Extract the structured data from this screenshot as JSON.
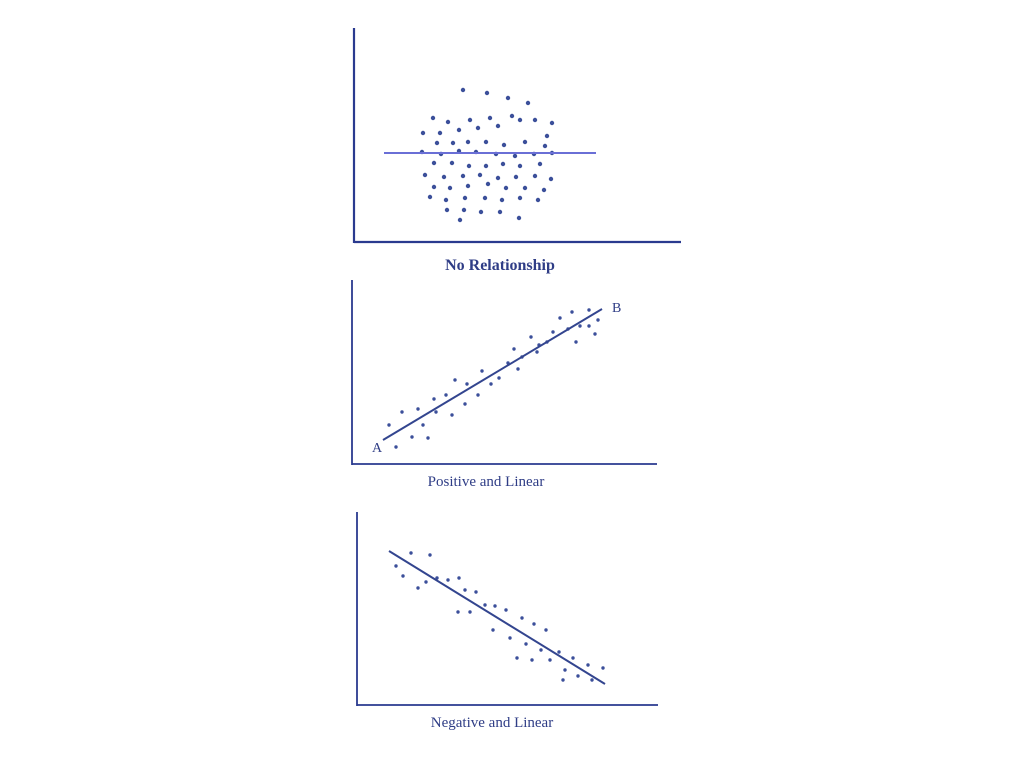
{
  "colors": {
    "ink": "#2f3d86",
    "axis": "#2a3a8f",
    "fit_line_flat": "#6a6fd6",
    "fit_line": "#33458f",
    "dots": "#3b4f9a"
  },
  "chart_data": [
    {
      "type": "scatter",
      "title": "No Relationship",
      "xlabel": "",
      "ylabel": "",
      "trend": "horizontal",
      "points": [
        [
          463,
          90
        ],
        [
          487,
          93
        ],
        [
          508,
          98
        ],
        [
          528,
          103
        ],
        [
          433,
          118
        ],
        [
          448,
          122
        ],
        [
          470,
          120
        ],
        [
          490,
          118
        ],
        [
          512,
          116
        ],
        [
          535,
          120
        ],
        [
          552,
          123
        ],
        [
          423,
          133
        ],
        [
          440,
          133
        ],
        [
          459,
          130
        ],
        [
          478,
          128
        ],
        [
          498,
          126
        ],
        [
          520,
          120
        ],
        [
          547,
          136
        ],
        [
          437,
          143
        ],
        [
          453,
          143
        ],
        [
          468,
          142
        ],
        [
          486,
          142
        ],
        [
          504,
          145
        ],
        [
          525,
          142
        ],
        [
          545,
          146
        ],
        [
          422,
          152
        ],
        [
          441,
          154
        ],
        [
          459,
          151
        ],
        [
          476,
          152
        ],
        [
          496,
          154
        ],
        [
          515,
          156
        ],
        [
          534,
          154
        ],
        [
          552,
          153
        ],
        [
          434,
          163
        ],
        [
          452,
          163
        ],
        [
          469,
          166
        ],
        [
          486,
          166
        ],
        [
          503,
          164
        ],
        [
          520,
          166
        ],
        [
          540,
          164
        ],
        [
          425,
          175
        ],
        [
          444,
          177
        ],
        [
          463,
          176
        ],
        [
          480,
          175
        ],
        [
          498,
          178
        ],
        [
          516,
          177
        ],
        [
          535,
          176
        ],
        [
          551,
          179
        ],
        [
          434,
          187
        ],
        [
          450,
          188
        ],
        [
          468,
          186
        ],
        [
          488,
          184
        ],
        [
          506,
          188
        ],
        [
          525,
          188
        ],
        [
          544,
          190
        ],
        [
          430,
          197
        ],
        [
          446,
          200
        ],
        [
          465,
          198
        ],
        [
          485,
          198
        ],
        [
          502,
          200
        ],
        [
          520,
          198
        ],
        [
          538,
          200
        ],
        [
          447,
          210
        ],
        [
          464,
          210
        ],
        [
          481,
          212
        ],
        [
          500,
          212
        ],
        [
          519,
          218
        ],
        [
          460,
          220
        ]
      ]
    },
    {
      "type": "scatter",
      "title": "Positive and Linear",
      "xlabel": "",
      "ylabel": "",
      "trend": "positive",
      "line_labels": {
        "start": "A",
        "end": "B"
      },
      "points": [
        [
          389,
          425
        ],
        [
          402,
          412
        ],
        [
          418,
          409
        ],
        [
          396,
          447
        ],
        [
          412,
          437
        ],
        [
          428,
          438
        ],
        [
          423,
          425
        ],
        [
          434,
          399
        ],
        [
          446,
          395
        ],
        [
          452,
          415
        ],
        [
          436,
          412
        ],
        [
          455,
          380
        ],
        [
          467,
          384
        ],
        [
          465,
          404
        ],
        [
          478,
          395
        ],
        [
          482,
          371
        ],
        [
          491,
          384
        ],
        [
          499,
          378
        ],
        [
          508,
          363
        ],
        [
          514,
          349
        ],
        [
          522,
          357
        ],
        [
          518,
          369
        ],
        [
          531,
          337
        ],
        [
          539,
          345
        ],
        [
          537,
          352
        ],
        [
          547,
          342
        ],
        [
          553,
          332
        ],
        [
          560,
          318
        ],
        [
          572,
          312
        ],
        [
          568,
          329
        ],
        [
          580,
          326
        ],
        [
          576,
          342
        ],
        [
          589,
          326
        ],
        [
          595,
          334
        ],
        [
          598,
          320
        ],
        [
          589,
          310
        ]
      ]
    },
    {
      "type": "scatter",
      "title": "Negative and Linear",
      "xlabel": "",
      "ylabel": "",
      "trend": "negative",
      "points": [
        [
          396,
          566
        ],
        [
          411,
          553
        ],
        [
          430,
          555
        ],
        [
          403,
          576
        ],
        [
          418,
          588
        ],
        [
          426,
          582
        ],
        [
          437,
          578
        ],
        [
          448,
          580
        ],
        [
          459,
          578
        ],
        [
          465,
          590
        ],
        [
          476,
          592
        ],
        [
          485,
          605
        ],
        [
          495,
          606
        ],
        [
          458,
          612
        ],
        [
          470,
          612
        ],
        [
          506,
          610
        ],
        [
          522,
          618
        ],
        [
          534,
          624
        ],
        [
          546,
          630
        ],
        [
          493,
          630
        ],
        [
          510,
          638
        ],
        [
          526,
          644
        ],
        [
          541,
          650
        ],
        [
          559,
          652
        ],
        [
          573,
          658
        ],
        [
          588,
          665
        ],
        [
          517,
          658
        ],
        [
          532,
          660
        ],
        [
          550,
          660
        ],
        [
          565,
          670
        ],
        [
          578,
          676
        ],
        [
          592,
          680
        ],
        [
          603,
          668
        ],
        [
          563,
          680
        ]
      ]
    }
  ]
}
